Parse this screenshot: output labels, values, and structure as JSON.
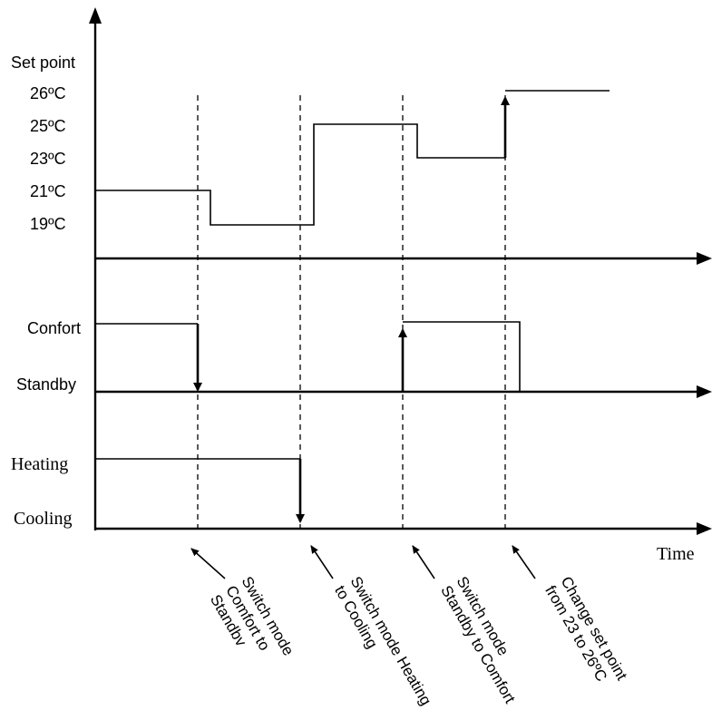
{
  "setpoint": {
    "title": "Set point",
    "levels": [
      "26ºC",
      "25ºC",
      "23ºC",
      "21ºC",
      "19ºC"
    ]
  },
  "mode": {
    "confort": "Confort",
    "standby": "Standby"
  },
  "hvac": {
    "heating": "Heating",
    "cooling": "Cooling"
  },
  "time_label": "Time",
  "events": [
    {
      "lines": [
        "Switch  mode",
        "Comfort to",
        "Standbv"
      ]
    },
    {
      "lines": [
        "Switch  mode Heating",
        "to Cooling"
      ]
    },
    {
      "lines": [
        "Switch mode",
        "Standby  to Comfort"
      ]
    },
    {
      "lines": [
        "Change  set point",
        "from 23 to 26ºC"
      ]
    }
  ]
}
